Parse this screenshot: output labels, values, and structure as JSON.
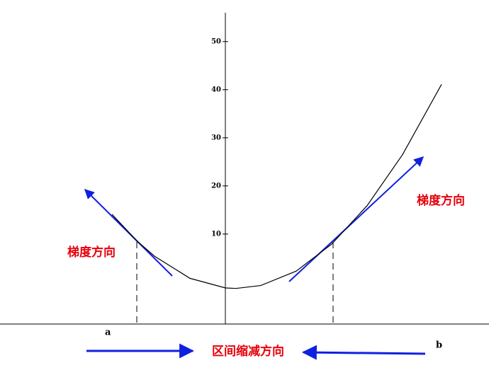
{
  "chart_data": {
    "type": "line",
    "x": [
      -3.2,
      -2.5,
      -2,
      -1,
      0,
      0.3,
      1,
      2,
      3,
      4,
      5,
      6.1
    ],
    "series": [
      {
        "color": "#000000",
        "values": [
          14.1,
          8.6,
          5.4,
          0.8,
          -1.2,
          -1.3,
          -0.7,
          2.3,
          7.9,
          15.9,
          26.5,
          41.1
        ]
      }
    ],
    "xlim": [
      -6.36,
      7.44
    ],
    "ylim": [
      -8.7,
      55.7
    ],
    "yticks": [
      10,
      20,
      30,
      40,
      50
    ],
    "annotations": [
      "梯度方向",
      "梯度方向",
      "区间缩减方向",
      "a",
      "b"
    ]
  }
}
